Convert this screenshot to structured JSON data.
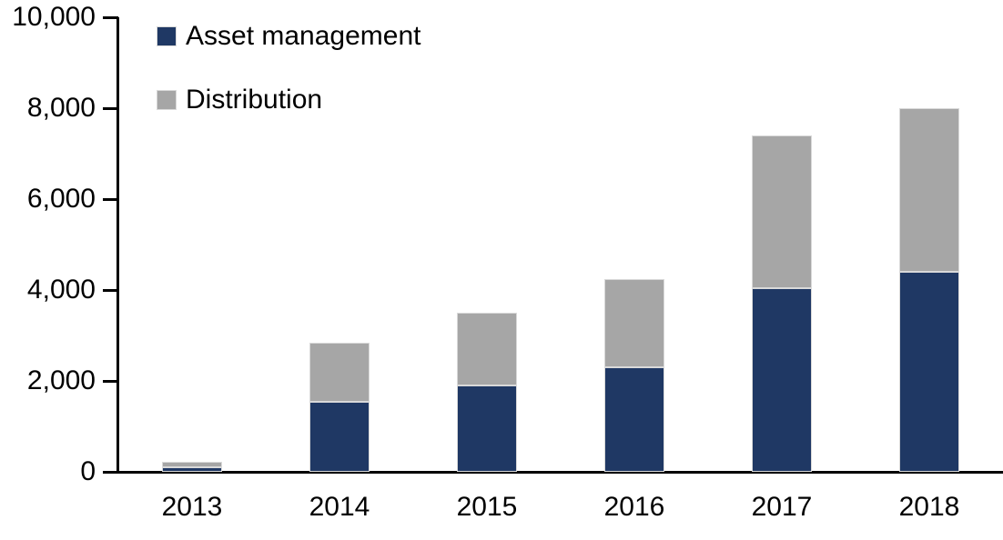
{
  "chart_data": {
    "type": "bar",
    "stacked": true,
    "title": "",
    "xlabel": "",
    "ylabel": "",
    "categories": [
      "2013",
      "2014",
      "2015",
      "2016",
      "2017",
      "2018"
    ],
    "series": [
      {
        "name": "Asset management",
        "color": "#1F3864",
        "values": [
          110,
          1550,
          1900,
          2300,
          4050,
          4400
        ]
      },
      {
        "name": "Distribution",
        "color": "#A6A6A6",
        "values": [
          120,
          1300,
          1600,
          1950,
          3350,
          3600
        ]
      }
    ],
    "totals": [
      230,
      2850,
      3500,
      4250,
      7400,
      8000
    ],
    "ylim": [
      0,
      10000
    ],
    "ytick_interval": 2000,
    "ytick_labels": [
      "0",
      "2,000",
      "4,000",
      "6,000",
      "8,000",
      "10,000"
    ],
    "grid": false,
    "legend_position": "top-left",
    "axis_color": "#000000",
    "background_color": "#FFFFFF"
  }
}
